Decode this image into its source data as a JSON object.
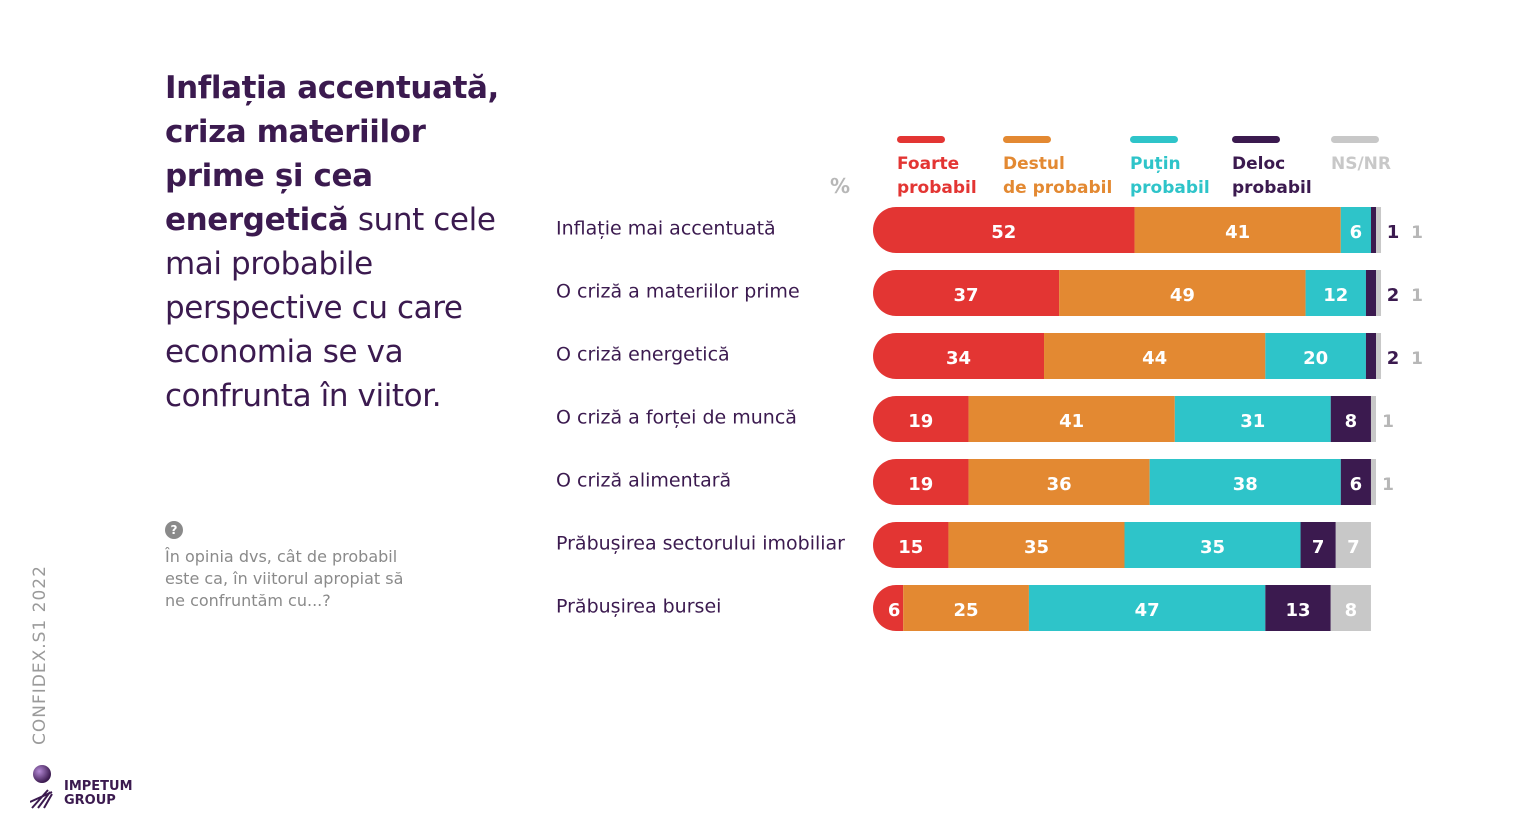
{
  "headline": {
    "bold": "Inflația accentuată, criza materiilor prime și cea energetică",
    "regular": " sunt cele mai probabile perspective cu care economia se va confrunta în viitor."
  },
  "question": {
    "icon": "question-mark-icon",
    "text": "În opinia dvs, cât de probabil este ca, în viitorul apropiat să ne confruntăm cu...?"
  },
  "side_label": "CONFIDEX.S1 2022",
  "logo": {
    "name": "IMPETUM",
    "sub": "GROUP",
    "icon": "impetum-logo-icon"
  },
  "chart_data": {
    "type": "bar",
    "orientation": "horizontal",
    "stacked": true,
    "unit_label": "%",
    "categories": [
      "Inflație mai accentuată",
      "O criză a materiilor prime",
      "O criză energetică",
      "O criză a forței de muncă",
      "O criză alimentară",
      "Prăbușirea sectorului imobiliar",
      "Prăbușirea bursei"
    ],
    "series": [
      {
        "name": "Foarte probabil",
        "legend_lines": [
          "Foarte",
          "probabil"
        ],
        "color": "#e33533",
        "values": [
          52,
          37,
          34,
          19,
          19,
          15,
          6
        ]
      },
      {
        "name": "Destul de probabil",
        "legend_lines": [
          "Destul",
          "de probabil"
        ],
        "color": "#e38932",
        "values": [
          41,
          49,
          44,
          41,
          36,
          35,
          25
        ]
      },
      {
        "name": "Puțin probabil",
        "legend_lines": [
          "Puțin",
          "probabil"
        ],
        "color": "#2ec4c9",
        "values": [
          6,
          12,
          20,
          31,
          38,
          35,
          47
        ]
      },
      {
        "name": "Deloc probabil",
        "legend_lines": [
          "Deloc",
          "probabil"
        ],
        "color": "#3b1a4f",
        "values": [
          1,
          2,
          2,
          8,
          6,
          7,
          13
        ]
      },
      {
        "name": "NS/NR",
        "legend_lines": [
          "NS/NR"
        ],
        "color": "#c8c8c8",
        "values": [
          1,
          1,
          1,
          1,
          1,
          7,
          8
        ]
      }
    ]
  }
}
